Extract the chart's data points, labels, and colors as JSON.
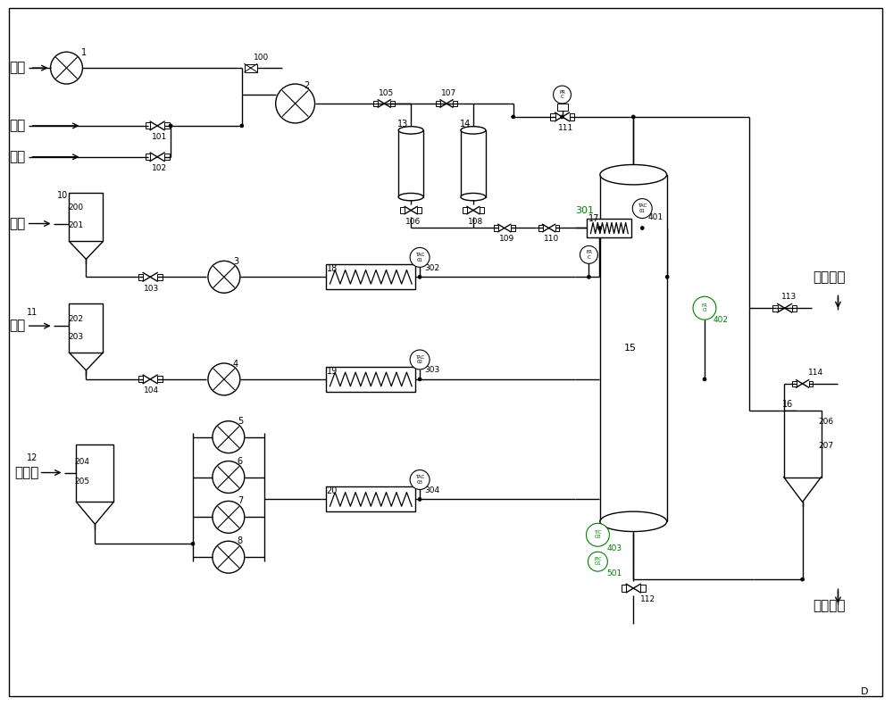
{
  "bg_color": "#ffffff",
  "lw": 1.0,
  "fig_width": 10.0,
  "fig_height": 7.91,
  "labels": {
    "air": "空气",
    "nitrogen": "氮气",
    "oxygen": "氧气",
    "fuel": "燃料",
    "material": "物料",
    "desalted": "脱盐水",
    "gas_sample": "气体采样",
    "liquid_sample": "液体采样"
  },
  "green_color": "#008000",
  "gray_color": "#555555"
}
